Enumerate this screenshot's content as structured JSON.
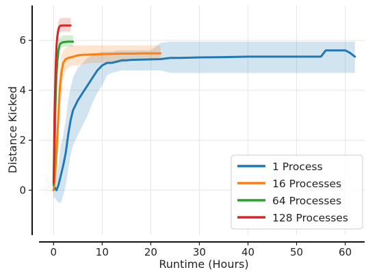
{
  "chart_data": {
    "type": "line",
    "xlabel": "Runtime (Hours)",
    "ylabel": "Distance Kicked",
    "xlim": [
      -3,
      64
    ],
    "ylim": [
      -1.8,
      7.4
    ],
    "xticks": [
      0,
      10,
      20,
      30,
      40,
      50,
      60
    ],
    "yticks": [
      0,
      2,
      4,
      6
    ],
    "grid": true,
    "legend_position": "lower-right",
    "series": [
      {
        "name": "1 Process",
        "color": "#1f77b4",
        "x": [
          0,
          0.3,
          0.6,
          1,
          1.5,
          2,
          2.5,
          3,
          3.5,
          4,
          5,
          6,
          7,
          8,
          9,
          10,
          11,
          12,
          13,
          14,
          15,
          16,
          18,
          20,
          22,
          24,
          26,
          30,
          35,
          40,
          45,
          50,
          55,
          56,
          57,
          58,
          59,
          60,
          61,
          62
        ],
        "y": [
          0.0,
          0.1,
          0.0,
          0.2,
          0.6,
          1.0,
          1.5,
          2.2,
          2.8,
          3.2,
          3.6,
          3.9,
          4.2,
          4.5,
          4.8,
          5.0,
          5.1,
          5.1,
          5.15,
          5.2,
          5.2,
          5.22,
          5.23,
          5.24,
          5.25,
          5.3,
          5.3,
          5.32,
          5.33,
          5.35,
          5.35,
          5.35,
          5.35,
          5.6,
          5.6,
          5.6,
          5.6,
          5.6,
          5.5,
          5.35
        ],
        "lower": [
          -0.3,
          -0.3,
          -0.4,
          -0.5,
          -0.5,
          -0.2,
          0.2,
          0.8,
          1.4,
          1.8,
          2.2,
          2.6,
          3.0,
          3.5,
          3.9,
          4.2,
          4.6,
          4.7,
          4.75,
          4.8,
          4.8,
          4.8,
          4.8,
          4.8,
          4.8,
          4.7,
          4.7,
          4.7,
          4.7,
          4.7,
          4.7,
          4.7,
          4.7,
          4.7,
          4.7,
          4.7,
          4.7,
          4.7,
          4.7,
          4.7
        ],
        "upper": [
          0.3,
          0.5,
          0.6,
          1.0,
          1.8,
          2.2,
          2.8,
          3.6,
          4.1,
          4.5,
          4.9,
          5.1,
          5.3,
          5.4,
          5.5,
          5.55,
          5.55,
          5.55,
          5.6,
          5.6,
          5.6,
          5.6,
          5.6,
          5.6,
          5.9,
          5.95,
          5.95,
          5.95,
          5.95,
          5.95,
          5.95,
          5.95,
          5.95,
          5.95,
          5.95,
          5.95,
          5.95,
          5.95,
          5.95,
          5.95
        ]
      },
      {
        "name": "16 Processes",
        "color": "#ff7f0e",
        "x": [
          0,
          0.3,
          0.6,
          1,
          1.3,
          1.6,
          2,
          2.5,
          3,
          4,
          5,
          6,
          8,
          10,
          12,
          14,
          16,
          18,
          20,
          22
        ],
        "y": [
          0.0,
          0.5,
          1.5,
          3.0,
          4.1,
          4.7,
          5.1,
          5.25,
          5.3,
          5.35,
          5.4,
          5.42,
          5.44,
          5.45,
          5.46,
          5.47,
          5.47,
          5.48,
          5.48,
          5.48
        ],
        "lower": [
          -0.2,
          0.1,
          0.6,
          1.8,
          3.0,
          3.8,
          4.5,
          4.8,
          4.9,
          5.0,
          5.0,
          5.05,
          5.1,
          5.1,
          5.1,
          5.1,
          5.2,
          5.2,
          5.2,
          5.2
        ],
        "upper": [
          0.3,
          1.2,
          2.6,
          4.2,
          5.0,
          5.4,
          5.6,
          5.7,
          5.75,
          5.8,
          5.8,
          5.8,
          5.8,
          5.8,
          5.8,
          5.8,
          5.8,
          5.8,
          5.8,
          5.8
        ]
      },
      {
        "name": "64 Processes",
        "color": "#2ca02c",
        "x": [
          0,
          0.2,
          0.4,
          0.6,
          0.8,
          1.0,
          1.3,
          1.6,
          2,
          3,
          4
        ],
        "y": [
          0.2,
          1.5,
          3.5,
          4.6,
          5.2,
          5.6,
          5.85,
          5.9,
          5.93,
          5.95,
          5.95
        ],
        "lower": [
          -0.1,
          0.8,
          2.6,
          3.9,
          4.7,
          5.2,
          5.6,
          5.7,
          5.75,
          5.75,
          5.75
        ],
        "upper": [
          0.5,
          2.3,
          4.3,
          5.3,
          5.7,
          6.0,
          6.1,
          6.15,
          6.2,
          6.2,
          6.2
        ]
      },
      {
        "name": "128 Processes",
        "color": "#d62728",
        "x": [
          0,
          0.1,
          0.2,
          0.4,
          0.6,
          0.8,
          1.0,
          1.2,
          1.5,
          2,
          2.5,
          3,
          3.5
        ],
        "y": [
          0.3,
          1.5,
          3.0,
          4.8,
          5.8,
          6.2,
          6.45,
          6.55,
          6.6,
          6.6,
          6.6,
          6.6,
          6.6
        ],
        "lower": [
          0.0,
          0.8,
          2.2,
          4.0,
          5.3,
          5.9,
          6.2,
          6.3,
          6.35,
          6.35,
          6.35,
          6.35,
          6.35
        ],
        "upper": [
          0.6,
          2.2,
          3.8,
          5.6,
          6.3,
          6.5,
          6.75,
          6.85,
          6.9,
          6.9,
          6.9,
          6.9,
          6.9
        ]
      }
    ]
  }
}
